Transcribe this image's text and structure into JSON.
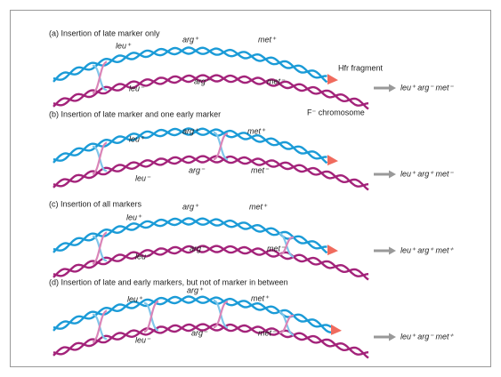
{
  "panels": [
    {
      "title": "(a) Insertion of late marker only",
      "donor": [
        "leu⁺",
        "arg⁺",
        "met⁺"
      ],
      "recipient": [
        "leu⁻",
        "arg⁻",
        "met⁻"
      ],
      "result": "leu⁺ arg⁻ met⁻"
    },
    {
      "title": "(b) Insertion of late marker and one early marker",
      "donor": [
        "leu⁺",
        "arg⁺",
        "met⁺"
      ],
      "recipient": [
        "leu⁻",
        "arg⁻",
        "met⁻"
      ],
      "result": "leu⁺ arg⁺ met⁻"
    },
    {
      "title": "(c) Insertion of all markers",
      "donor": [
        "leu⁺",
        "arg⁺",
        "met⁺"
      ],
      "recipient": [
        "leu⁻",
        "arg⁻",
        "met⁻"
      ],
      "result": "leu⁺ arg⁺ met⁺"
    },
    {
      "title": "(d) Insertion of late and early markers, but not of marker in between",
      "donor": [
        "leu⁺",
        "arg⁺",
        "met⁺"
      ],
      "recipient": [
        "leu⁻",
        "arg⁻",
        "met⁻"
      ],
      "result": "leu⁺ arg⁻ met⁺"
    }
  ],
  "hfr_label": "Hfr fragment",
  "f_label": "F⁻ chromosome"
}
